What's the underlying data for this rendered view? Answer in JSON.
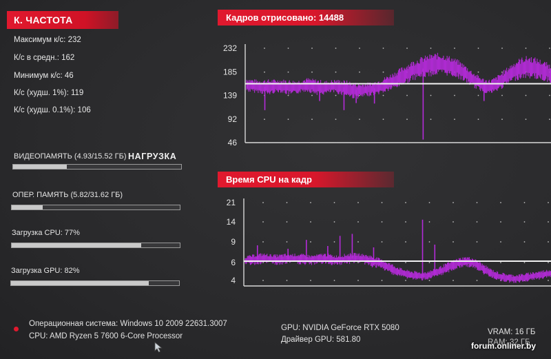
{
  "left_panel": {
    "header": "К. ЧАСТОТА",
    "stats": [
      "Максимум к/с: 232",
      "К/с в средн.: 162",
      "Минимум к/с: 46",
      "К/с (худш. 1%): 119",
      "К/с (худш. 0.1%): 106"
    ],
    "bars": [
      {
        "label": "ВИДЕОПАМЯТЬ (4.93/15.52 ГБ)",
        "fraction": 0.318
      },
      {
        "label": "ОПЕР. ПАМЯТЬ (5.82/31.62 ГБ)",
        "fraction": 0.184
      },
      {
        "label": "Загрузка CPU: 77%",
        "fraction": 0.77
      },
      {
        "label": "Загрузка GPU: 82%",
        "fraction": 0.82
      }
    ],
    "load_tag": "НАГРУЗКА"
  },
  "footer": {
    "os": "Операционная система: Windows 10 2009 22631.3007",
    "cpu": "CPU: AMD Ryzen 5 7600 6-Core Processor",
    "gpu": "GPU: NVIDIA GeForce RTX 5080",
    "driver": "Драйвер GPU: 581.80",
    "vram": "VRAM: 16 ГБ",
    "ram": "RAM: 32 ГБ",
    "watermark": "forum.onliner.by"
  },
  "colors": {
    "accent_red": "#e0192e",
    "series": "#b42bd9",
    "avg_line": "#f2f2f2",
    "background": "#2b2b2d"
  },
  "chart_data": [
    {
      "type": "line",
      "title": "Кадров отрисовано: 14488",
      "yticks": [
        232,
        185,
        139,
        92,
        46
      ],
      "ylim": [
        46,
        232
      ],
      "average": 162,
      "grid": "dotted",
      "series": [
        {
          "values": [
            160,
            158,
            157,
            156,
            155,
            157,
            158,
            156,
            154,
            155,
            158,
            160,
            157,
            155,
            154,
            156,
            157,
            155,
            153,
            150,
            148,
            149,
            151,
            153,
            156,
            160,
            165,
            170,
            176,
            182,
            188,
            192,
            195,
            198,
            200,
            201,
            199,
            196,
            192,
            186,
            178,
            170,
            163,
            158,
            156,
            160,
            168,
            176,
            184,
            190,
            194,
            195,
            193,
            190,
            186,
            182
          ],
          "spread": [
            14,
            14,
            13,
            15,
            16,
            14,
            13,
            15,
            16,
            14,
            13,
            14,
            15,
            16,
            14,
            13,
            14,
            15,
            16,
            17,
            16,
            15,
            14,
            14,
            15,
            16,
            17,
            18,
            19,
            20,
            20,
            21,
            22,
            22,
            23,
            22,
            21,
            20,
            19,
            18,
            17,
            16,
            15,
            14,
            15,
            16,
            17,
            18,
            19,
            21,
            22,
            23,
            22,
            21,
            20,
            19
          ],
          "dips": [
            {
              "at": 0.06,
              "to": 110
            },
            {
              "at": 0.24,
              "to": 128
            },
            {
              "at": 0.32,
              "to": 110
            },
            {
              "at": 0.36,
              "to": 124
            },
            {
              "at": 0.42,
              "to": 123
            },
            {
              "at": 0.58,
              "to": 52
            },
            {
              "at": 0.78,
              "to": 128
            }
          ]
        }
      ]
    },
    {
      "type": "line",
      "title": "Время CPU на кадр",
      "yticks": [
        21,
        14,
        9,
        6,
        4
      ],
      "ylim": [
        3,
        21
      ],
      "average": 6.2,
      "grid": "dotted",
      "series": [
        {
          "values": [
            6.3,
            6.4,
            6.5,
            6.6,
            6.6,
            6.5,
            6.4,
            6.5,
            6.6,
            6.6,
            6.5,
            6.4,
            6.4,
            6.5,
            6.6,
            6.5,
            6.4,
            6.4,
            6.5,
            6.6,
            6.7,
            6.6,
            6.4,
            6.2,
            6.0,
            5.7,
            5.4,
            5.1,
            4.9,
            4.7,
            4.6,
            4.5,
            4.5,
            4.6,
            4.8,
            5.0,
            5.3,
            5.6,
            5.9,
            6.1,
            6.2,
            6.0,
            5.6,
            5.2,
            4.9,
            4.6,
            4.4,
            4.3,
            4.2,
            4.2,
            4.3,
            4.4,
            4.5,
            4.6,
            4.7,
            4.8
          ],
          "spread": [
            0.7,
            0.7,
            0.8,
            0.8,
            0.7,
            0.7,
            0.8,
            0.8,
            0.7,
            0.7,
            0.8,
            0.8,
            0.7,
            0.7,
            0.8,
            0.8,
            0.7,
            0.7,
            0.8,
            0.8,
            0.7,
            0.7,
            0.8,
            0.8,
            0.7,
            0.6,
            0.6,
            0.6,
            0.5,
            0.5,
            0.5,
            0.5,
            0.5,
            0.5,
            0.5,
            0.6,
            0.6,
            0.6,
            0.7,
            0.7,
            0.7,
            0.7,
            0.6,
            0.6,
            0.5,
            0.5,
            0.5,
            0.5,
            0.5,
            0.5,
            0.5,
            0.5,
            0.5,
            0.5,
            0.5,
            0.5
          ],
          "spikes": [
            {
              "at": 0.04,
              "to": 8.5
            },
            {
              "at": 0.14,
              "to": 8.0
            },
            {
              "at": 0.2,
              "to": 9.5
            },
            {
              "at": 0.27,
              "to": 8.4
            },
            {
              "at": 0.31,
              "to": 10.5
            },
            {
              "at": 0.35,
              "to": 11.0
            },
            {
              "at": 0.42,
              "to": 8.2
            },
            {
              "at": 0.58,
              "to": 14.8
            },
            {
              "at": 0.62,
              "to": 8.6
            }
          ]
        }
      ]
    }
  ]
}
